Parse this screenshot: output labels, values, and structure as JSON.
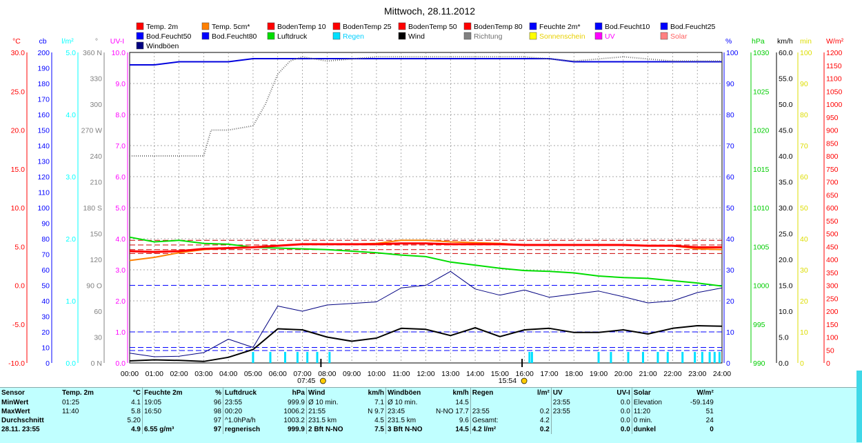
{
  "chart_data": {
    "type": "line",
    "title": "Mittwoch, 28.11.2012",
    "legend": [
      {
        "name": "Temp. 2m",
        "color": "#ff0000"
      },
      {
        "name": "Temp. 5cm*",
        "color": "#ff8000"
      },
      {
        "name": "BodenTemp 10",
        "color": "#ff0000"
      },
      {
        "name": "BodenTemp 25",
        "color": "#ff0000"
      },
      {
        "name": "BodenTemp 50",
        "color": "#ff0000"
      },
      {
        "name": "BodenTemp 80",
        "color": "#ff0000"
      },
      {
        "name": "Feuchte 2m*",
        "color": "#0000ff"
      },
      {
        "name": "Bod.Feucht10",
        "color": "#0000ff"
      },
      {
        "name": "Bod.Feucht25",
        "color": "#0000ff"
      },
      {
        "name": "Bod.Feucht50",
        "color": "#0000ff"
      },
      {
        "name": "Bod.Feucht80",
        "color": "#0000ff"
      },
      {
        "name": "Luftdruck",
        "color": "#00dd00"
      },
      {
        "name": "Regen",
        "color": "#00e0ff"
      },
      {
        "name": "Wind",
        "color": "#000000"
      },
      {
        "name": "Richtung",
        "color": "#808080"
      },
      {
        "name": "Sonnenschein",
        "color": "#ffff00"
      },
      {
        "name": "UV",
        "color": "#ff00ff"
      },
      {
        "name": "Solar",
        "color": "#ff8080"
      },
      {
        "name": "Windböen",
        "color": "#000080"
      }
    ],
    "axes": [
      {
        "unit": "°C",
        "color": "#ff0000",
        "ticks": [
          "30.0",
          "25.0",
          "20.0",
          "15.0",
          "10.0",
          "5.0",
          "0.0",
          "-5.0",
          "-10.0"
        ]
      },
      {
        "unit": "cb",
        "color": "#0000ff",
        "ticks": [
          "200",
          "190",
          "180",
          "170",
          "160",
          "150",
          "140",
          "130",
          "120",
          "110",
          "100",
          "90",
          "80",
          "70",
          "60",
          "50",
          "40",
          "30",
          "20",
          "10",
          "0"
        ]
      },
      {
        "unit": "l/m²",
        "color": "#00ffff",
        "ticks": [
          "5.0",
          "4.0",
          "3.0",
          "2.0",
          "1.0",
          "0.0"
        ]
      },
      {
        "unit": "°",
        "color": "#808080",
        "ticks": [
          "360 N",
          "330",
          "300",
          "270 W",
          "240",
          "210",
          "180 S",
          "150",
          "120",
          "90 O",
          "60",
          "30",
          "0 N"
        ]
      },
      {
        "unit": "UV-I",
        "color": "#ff00ff",
        "ticks": [
          "10.0",
          "9.0",
          "8.0",
          "7.0",
          "6.0",
          "5.0",
          "4.0",
          "3.0",
          "2.0",
          "1.0",
          "0.0"
        ]
      },
      {
        "unit": "%",
        "color": "#0000ff",
        "ticks": [
          "100",
          "90",
          "80",
          "70",
          "60",
          "50",
          "40",
          "30",
          "20",
          "10",
          "0"
        ]
      },
      {
        "unit": "hPa",
        "color": "#00cc00",
        "ticks": [
          "1030",
          "1025",
          "1020",
          "1015",
          "1010",
          "1005",
          "1000",
          "995",
          "990"
        ]
      },
      {
        "unit": "km/h",
        "color": "#000000",
        "ticks": [
          "60.0",
          "55.0",
          "50.0",
          "45.0",
          "40.0",
          "35.0",
          "30.0",
          "25.0",
          "20.0",
          "15.0",
          "10.0",
          "5.0",
          "0.0"
        ]
      },
      {
        "unit": "min",
        "color": "#dddd00",
        "ticks": [
          "100",
          "90",
          "80",
          "70",
          "60",
          "50",
          "40",
          "30",
          "20",
          "10",
          "0"
        ]
      },
      {
        "unit": "W/m²",
        "color": "#ff0000",
        "ticks": [
          "1200",
          "1150",
          "1100",
          "1050",
          "1000",
          "950",
          "900",
          "850",
          "800",
          "750",
          "700",
          "650",
          "600",
          "550",
          "500",
          "450",
          "400",
          "350",
          "300",
          "250",
          "200",
          "150",
          "100",
          "50",
          "0"
        ]
      }
    ],
    "x_ticks": [
      "00:00",
      "01:00",
      "02:00",
      "03:00",
      "04:00",
      "05:00",
      "06:00",
      "07:00",
      "08:00",
      "09:00",
      "10:00",
      "11:00",
      "12:00",
      "13:00",
      "14:00",
      "15:00",
      "16:00",
      "17:00",
      "18:00",
      "19:00",
      "20:00",
      "21:00",
      "22:00",
      "23:00",
      "24:00"
    ],
    "markers": [
      {
        "label": "07:45",
        "hour": 7.75,
        "color": "#ffcc00"
      },
      {
        "label": "15:54",
        "hour": 15.9,
        "color": "#ffcc00"
      }
    ],
    "series": [
      {
        "name": "Temp. 2m",
        "axis": "°C",
        "hours": [
          0,
          1,
          2,
          3,
          4,
          5,
          6,
          7,
          8,
          9,
          10,
          11,
          12,
          13,
          14,
          15,
          16,
          17,
          18,
          19,
          20,
          21,
          22,
          23,
          24
        ],
        "values": [
          4.4,
          4.3,
          4.4,
          4.7,
          4.8,
          4.9,
          5.1,
          5.3,
          5.3,
          5.3,
          5.3,
          5.4,
          5.4,
          5.3,
          5.3,
          5.3,
          5.2,
          5.2,
          5.2,
          5.2,
          5.2,
          5.1,
          5.1,
          4.9,
          4.9
        ]
      },
      {
        "name": "Temp. 5cm*",
        "axis": "°C",
        "hours": [
          0,
          1,
          2,
          3,
          4,
          5,
          6,
          7,
          8,
          9,
          10,
          11,
          12,
          13,
          14,
          15,
          16,
          17,
          18,
          19,
          20,
          21,
          22,
          23,
          24
        ],
        "values": [
          3.2,
          3.6,
          4.2,
          4.6,
          4.8,
          4.9,
          5.1,
          5.3,
          5.3,
          5.3,
          5.4,
          5.8,
          5.8,
          5.6,
          5.5,
          5.4,
          5.2,
          5.2,
          5.2,
          5.2,
          5.2,
          5.1,
          5.1,
          4.7,
          4.6
        ]
      },
      {
        "name": "Feuchte 2m*",
        "axis": "%",
        "hours": [
          0,
          1,
          2,
          3,
          4,
          5,
          6,
          7,
          8,
          9,
          10,
          11,
          12,
          13,
          14,
          15,
          16,
          17,
          18,
          19,
          20,
          21,
          22,
          23,
          24
        ],
        "values": [
          96,
          96,
          97,
          97,
          97,
          98,
          98,
          98,
          98,
          98,
          98,
          98,
          98,
          98,
          98,
          98,
          98,
          98,
          97,
          97,
          97,
          97,
          97,
          97,
          97
        ]
      },
      {
        "name": "Luftdruck",
        "axis": "hPa",
        "hours": [
          0,
          1,
          2,
          3,
          4,
          5,
          6,
          7,
          8,
          9,
          10,
          11,
          12,
          13,
          14,
          15,
          16,
          17,
          18,
          19,
          20,
          21,
          22,
          23,
          24
        ],
        "values": [
          1006.2,
          1005.6,
          1005.8,
          1005.4,
          1005.3,
          1004.9,
          1004.8,
          1004.7,
          1004.6,
          1004.4,
          1004.2,
          1003.9,
          1003.7,
          1003.0,
          1002.6,
          1002.2,
          1001.9,
          1001.8,
          1001.6,
          1001.2,
          1001.0,
          1000.9,
          1000.6,
          1000.3,
          999.9
        ]
      },
      {
        "name": "Wind",
        "axis": "km/h",
        "hours": [
          0,
          1,
          2,
          3,
          4,
          5,
          6,
          7,
          8,
          9,
          10,
          11,
          12,
          13,
          14,
          15,
          16,
          17,
          18,
          19,
          20,
          21,
          22,
          23,
          24
        ],
        "values": [
          0.4,
          0.6,
          0.5,
          0.3,
          1.1,
          2.6,
          6.6,
          6.4,
          5.0,
          4.2,
          4.8,
          6.7,
          6.5,
          5.3,
          6.8,
          5.1,
          6.4,
          6.7,
          5.9,
          5.9,
          6.4,
          5.6,
          6.7,
          7.2,
          7.1
        ]
      },
      {
        "name": "Windböen",
        "axis": "km/h",
        "hours": [
          0,
          1,
          2,
          3,
          4,
          5,
          6,
          7,
          8,
          9,
          10,
          11,
          12,
          13,
          14,
          15,
          16,
          17,
          18,
          19,
          20,
          21,
          22,
          23,
          24
        ],
        "values": [
          1.9,
          1.2,
          1.3,
          2.0,
          4.6,
          3.0,
          11.0,
          10.0,
          11.2,
          11.5,
          11.8,
          14.5,
          15.0,
          17.7,
          14.3,
          13.1,
          14.1,
          12.7,
          13.3,
          13.9,
          12.8,
          11.6,
          12.0,
          13.6,
          14.5
        ]
      },
      {
        "name": "Richtung",
        "axis": "°",
        "hours": [
          0,
          1,
          2,
          3,
          3.3,
          4,
          5,
          5.5,
          6,
          6.5,
          7,
          8,
          10,
          12,
          14,
          16,
          18,
          20,
          22,
          24
        ],
        "values": [
          240,
          240,
          240,
          240,
          270,
          270,
          275,
          300,
          335,
          350,
          355,
          350,
          355,
          355,
          355,
          355,
          350,
          355,
          350,
          350
        ]
      }
    ],
    "regen_hours": [
      5.0,
      5.7,
      6.3,
      6.8,
      7.2,
      7.6,
      8.1,
      16.2,
      16.3,
      19.0,
      19.5,
      20.2,
      20.8,
      21.4,
      21.8,
      22.4,
      22.9,
      23.2,
      23.5,
      23.7,
      23.9
    ]
  },
  "stats": {
    "header": [
      "Sensor",
      "Temp. 2m",
      "°C",
      "Feuchte 2m",
      "%",
      "Luftdruck",
      "hPa",
      "Wind",
      "km/h",
      "Windböen",
      "km/h",
      "Regen",
      "l/m²",
      "UV",
      "UV-I",
      "Solar",
      "W/m²"
    ],
    "rows": [
      {
        "label": "MinWert",
        "cells": [
          "01:25",
          "4.1",
          "19:05",
          "96",
          "23:55",
          "999.9",
          "Ø 10 min.",
          "7.1",
          "Ø 10 min.",
          "14.5",
          "",
          "",
          "23:55",
          "0.0",
          "Elevation",
          "-59.149"
        ]
      },
      {
        "label": "MaxWert",
        "cells": [
          "11:40",
          "5.8",
          "16:50",
          "98",
          "00:20",
          "1006.2",
          "21:55",
          "N 9.7",
          "23:45",
          "N-NO 17.7",
          "23:55",
          "0.2",
          "23:55",
          "0.0",
          "11:20",
          "51"
        ]
      },
      {
        "label": "Durchschnitt",
        "cells": [
          "",
          "5.20",
          "",
          "97",
          "^1.0hPa/h",
          "1003.2",
          "231.5 km",
          "4.5",
          "231.5 km",
          "9.6",
          "Gesamt:",
          "4.2",
          "",
          "0.0",
          "0 min.",
          "24"
        ]
      },
      {
        "label": "28.11. 23:55",
        "cells": [
          "",
          "4.9",
          "6.55 g/m³",
          "97",
          "regnerisch",
          "999.9",
          "2 Bft N-NO",
          "7.5",
          "3 Bft N-NO",
          "14.5",
          "4.2 l/m²",
          "0.2",
          "",
          "0.0",
          "dunkel",
          "0"
        ]
      }
    ]
  }
}
